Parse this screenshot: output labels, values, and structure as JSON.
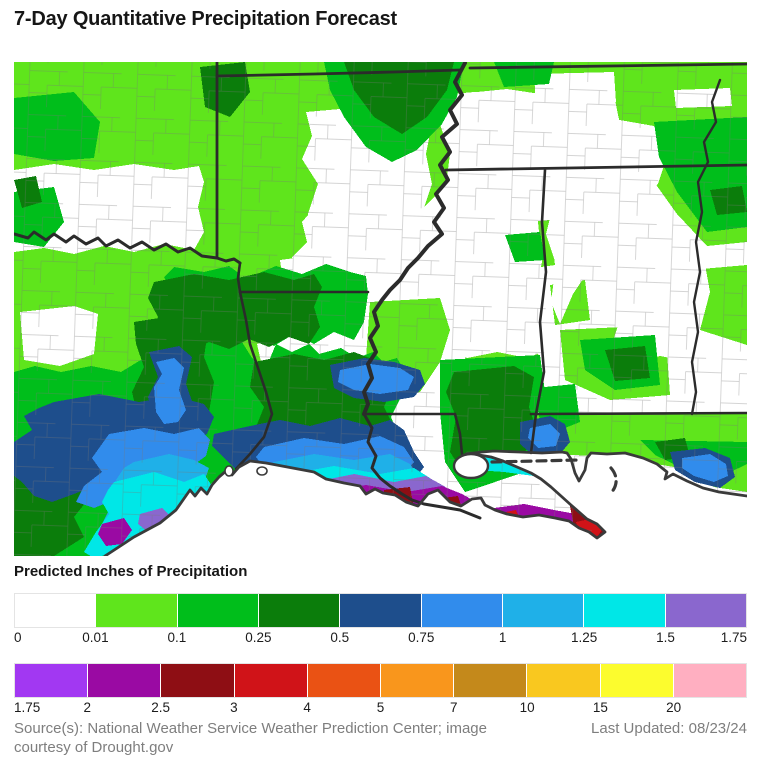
{
  "title": "7-Day Quantitative Precipitation Forecast",
  "legend": {
    "heading": "Predicted Inches of Precipitation",
    "scale_low": {
      "tick_labels": [
        "0",
        "0.01",
        "0.1",
        "0.25",
        "0.5",
        "0.75",
        "1",
        "1.25",
        "1.5",
        "1.75"
      ],
      "swatches": [
        {
          "range": "0-0.01",
          "color": "#FFFFFF"
        },
        {
          "range": "0.01-0.1",
          "color": "#5FE51C"
        },
        {
          "range": "0.1-0.25",
          "color": "#00BE1B"
        },
        {
          "range": "0.25-0.5",
          "color": "#0B7D0B"
        },
        {
          "range": "0.5-0.75",
          "color": "#1E4E8C"
        },
        {
          "range": "0.75-1",
          "color": "#318CEC"
        },
        {
          "range": "1-1.25",
          "color": "#1FB0E8"
        },
        {
          "range": "1.25-1.5",
          "color": "#00E7E7"
        },
        {
          "range": "1.5-1.75",
          "color": "#8A67CE"
        }
      ]
    },
    "scale_high": {
      "tick_labels": [
        "1.75",
        "2",
        "2.5",
        "3",
        "4",
        "5",
        "7",
        "10",
        "15",
        "20"
      ],
      "swatches": [
        {
          "range": "1.75-2",
          "color": "#A238F2"
        },
        {
          "range": "2-2.5",
          "color": "#9A0AA3"
        },
        {
          "range": "2.5-3",
          "color": "#8E0E14"
        },
        {
          "range": "3-4",
          "color": "#D01318"
        },
        {
          "range": "4-5",
          "color": "#EA5214"
        },
        {
          "range": "5-7",
          "color": "#F9961C"
        },
        {
          "range": "7-10",
          "color": "#C4891B"
        },
        {
          "range": "10-15",
          "color": "#F9C81F"
        },
        {
          "range": "15-20",
          "color": "#FCFC2E"
        },
        {
          "range": "20+",
          "color": "#FFAFC1"
        }
      ]
    }
  },
  "map": {
    "description": "Shaded 7-day precipitation forecast over the Gulf Coast region (Texas, Oklahoma, Arkansas, Louisiana, Mississippi, Alabama, Tennessee, Florida panhandle); heaviest forecast amounts of 2-4 inches along the southern Louisiana and upper Texas coasts",
    "colors": {
      "state_border": "#2B2B2B",
      "coastline": "#3A3A3A",
      "county_line": "#777777",
      "water": "#FFFFFF"
    }
  },
  "footer": {
    "source": "Source(s): National Weather Service Weather Prediction Center; image courtesy of Drought.gov",
    "last_updated": "Last Updated: 08/23/24"
  }
}
